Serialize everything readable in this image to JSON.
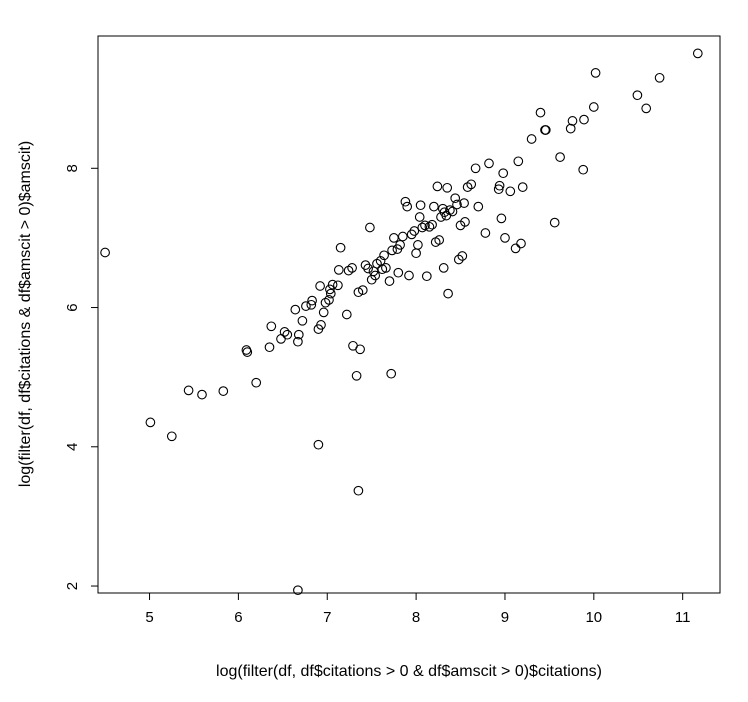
{
  "chart_data": {
    "type": "scatter",
    "title": "",
    "xlabel": "log(filter(df, df$citations > 0 & df$amscit > 0)$citations)",
    "ylabel": "log(filter(df, df$citations & df$amscit > 0)$amscit)",
    "xlim": [
      4.42,
      11.42
    ],
    "ylim": [
      1.9,
      9.9
    ],
    "xticks": [
      5,
      6,
      7,
      8,
      9,
      10,
      11
    ],
    "yticks": [
      2,
      4,
      6,
      8
    ],
    "xtick_labels": [
      "5",
      "6",
      "7",
      "8",
      "9",
      "10",
      "11"
    ],
    "ytick_labels": [
      "2",
      "4",
      "6",
      "8"
    ],
    "grid": false,
    "legend": "none",
    "marker": "open-circle",
    "points": [
      [
        4.5,
        6.79
      ],
      [
        5.01,
        4.35
      ],
      [
        5.25,
        4.15
      ],
      [
        5.44,
        4.81
      ],
      [
        5.59,
        4.75
      ],
      [
        5.83,
        4.8
      ],
      [
        6.09,
        5.39
      ],
      [
        6.1,
        5.36
      ],
      [
        6.2,
        4.92
      ],
      [
        6.35,
        5.43
      ],
      [
        6.37,
        5.73
      ],
      [
        6.48,
        5.55
      ],
      [
        6.52,
        5.65
      ],
      [
        6.55,
        5.61
      ],
      [
        6.64,
        5.97
      ],
      [
        6.67,
        5.51
      ],
      [
        6.68,
        5.61
      ],
      [
        6.72,
        5.81
      ],
      [
        6.76,
        6.02
      ],
      [
        6.82,
        6.04
      ],
      [
        6.83,
        6.1
      ],
      [
        6.9,
        5.69
      ],
      [
        6.92,
        6.31
      ],
      [
        6.93,
        5.75
      ],
      [
        6.96,
        5.93
      ],
      [
        6.98,
        6.07
      ],
      [
        7.02,
        6.11
      ],
      [
        7.03,
        6.26
      ],
      [
        7.04,
        6.2
      ],
      [
        7.06,
        6.33
      ],
      [
        7.12,
        6.32
      ],
      [
        7.13,
        6.54
      ],
      [
        7.15,
        6.86
      ],
      [
        7.22,
        5.9
      ],
      [
        7.24,
        6.53
      ],
      [
        7.28,
        6.57
      ],
      [
        7.29,
        5.45
      ],
      [
        7.33,
        5.02
      ],
      [
        7.35,
        6.22
      ],
      [
        7.37,
        5.4
      ],
      [
        7.4,
        6.25
      ],
      [
        7.43,
        6.61
      ],
      [
        7.46,
        6.56
      ],
      [
        7.48,
        7.15
      ],
      [
        7.5,
        6.4
      ],
      [
        7.52,
        6.52
      ],
      [
        7.54,
        6.46
      ],
      [
        7.56,
        6.63
      ],
      [
        7.6,
        6.67
      ],
      [
        7.62,
        6.55
      ],
      [
        7.64,
        6.75
      ],
      [
        7.66,
        6.57
      ],
      [
        7.7,
        6.38
      ],
      [
        7.72,
        5.05
      ],
      [
        7.73,
        6.82
      ],
      [
        7.75,
        7.0
      ],
      [
        7.79,
        6.84
      ],
      [
        7.8,
        6.5
      ],
      [
        7.82,
        6.9
      ],
      [
        7.85,
        7.02
      ],
      [
        7.88,
        7.52
      ],
      [
        7.9,
        7.45
      ],
      [
        7.92,
        6.46
      ],
      [
        7.95,
        7.05
      ],
      [
        7.98,
        7.1
      ],
      [
        8.0,
        6.78
      ],
      [
        8.02,
        6.9
      ],
      [
        8.04,
        7.3
      ],
      [
        8.05,
        7.47
      ],
      [
        8.07,
        7.15
      ],
      [
        8.1,
        7.18
      ],
      [
        8.12,
        6.45
      ],
      [
        8.15,
        7.16
      ],
      [
        8.18,
        7.19
      ],
      [
        8.2,
        7.45
      ],
      [
        8.22,
        6.94
      ],
      [
        8.24,
        7.74
      ],
      [
        8.26,
        6.97
      ],
      [
        8.28,
        7.3
      ],
      [
        8.3,
        7.42
      ],
      [
        8.31,
        6.57
      ],
      [
        8.32,
        7.37
      ],
      [
        8.34,
        7.32
      ],
      [
        8.35,
        7.72
      ],
      [
        8.36,
        6.2
      ],
      [
        8.38,
        7.4
      ],
      [
        8.41,
        7.38
      ],
      [
        8.44,
        7.57
      ],
      [
        8.46,
        7.48
      ],
      [
        8.48,
        6.69
      ],
      [
        8.5,
        7.18
      ],
      [
        8.52,
        6.74
      ],
      [
        8.54,
        7.5
      ],
      [
        8.55,
        7.23
      ],
      [
        8.58,
        7.73
      ],
      [
        8.62,
        7.77
      ],
      [
        8.67,
        8.0
      ],
      [
        8.7,
        7.45
      ],
      [
        8.78,
        7.07
      ],
      [
        8.82,
        8.07
      ],
      [
        8.93,
        7.7
      ],
      [
        8.94,
        7.75
      ],
      [
        8.96,
        7.28
      ],
      [
        8.98,
        7.93
      ],
      [
        9.0,
        7.0
      ],
      [
        9.06,
        7.67
      ],
      [
        9.12,
        6.85
      ],
      [
        9.15,
        8.1
      ],
      [
        9.18,
        6.92
      ],
      [
        9.2,
        7.73
      ],
      [
        9.3,
        8.42
      ],
      [
        9.4,
        8.8
      ],
      [
        9.45,
        8.55
      ],
      [
        9.46,
        8.55
      ],
      [
        9.56,
        7.22
      ],
      [
        9.62,
        8.16
      ],
      [
        9.74,
        8.57
      ],
      [
        9.76,
        8.68
      ],
      [
        9.88,
        7.98
      ],
      [
        9.89,
        8.7
      ],
      [
        10.0,
        8.88
      ],
      [
        10.02,
        9.37
      ],
      [
        10.49,
        9.05
      ],
      [
        10.59,
        8.86
      ],
      [
        10.74,
        9.3
      ],
      [
        11.17,
        9.65
      ],
      [
        6.9,
        4.03
      ],
      [
        7.35,
        3.37
      ],
      [
        6.67,
        1.94
      ]
    ]
  }
}
